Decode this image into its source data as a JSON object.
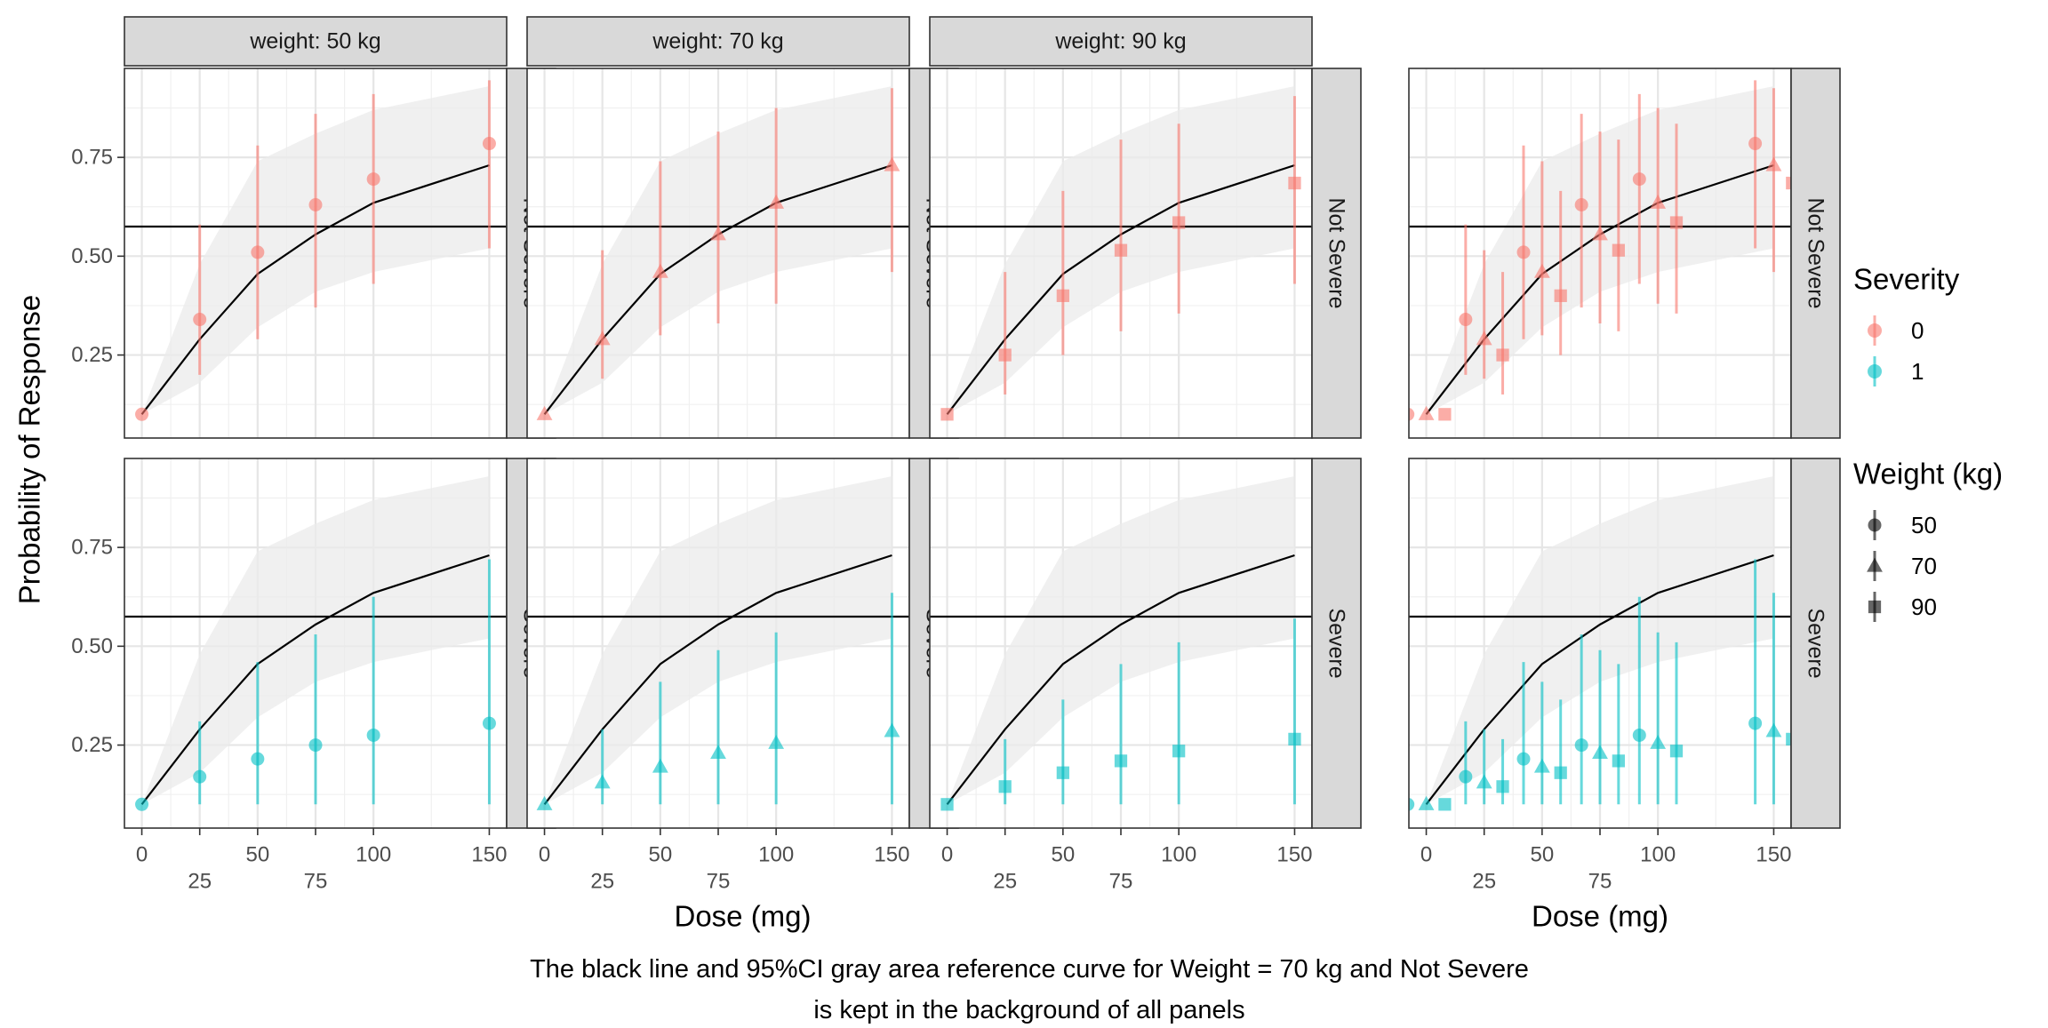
{
  "chart_data": {
    "type": "scatter",
    "ylabel": "Probability of Response",
    "xlabel": "Dose (mg)",
    "caption": [
      "The black line and 95%CI gray area reference curve for Weight = 70 kg and Not Severe",
      "is kept in the background of all panels"
    ],
    "facet_columns": [
      "weight: 50 kg",
      "weight: 70 kg",
      "weight: 90 kg"
    ],
    "facet_rows": [
      "Not Severe",
      "Severe"
    ],
    "x_ticks_top": [
      0,
      50,
      100,
      150
    ],
    "x_ticks_bottom": [
      25,
      75
    ],
    "x_tick_labels_top": [
      "0",
      "50",
      "100",
      "150"
    ],
    "x_tick_labels_bottom": [
      "25",
      "75"
    ],
    "y_ticks": [
      0.25,
      0.5,
      0.75
    ],
    "y_tick_labels": [
      "0.25",
      "0.50",
      "0.75"
    ],
    "xlim": [
      -7.5,
      157.5
    ],
    "ylim": [
      0.04,
      0.975
    ],
    "dodge_width": 8,
    "reference": {
      "dose": [
        0,
        25,
        50,
        75,
        100,
        150
      ],
      "prob": [
        0.1,
        0.29,
        0.455,
        0.555,
        0.635,
        0.73
      ],
      "lower": [
        0.1,
        0.18,
        0.32,
        0.41,
        0.46,
        0.52
      ],
      "upper": [
        0.1,
        0.48,
        0.74,
        0.81,
        0.87,
        0.93
      ],
      "hline": 0.575,
      "line_color": "#000000",
      "ribbon_color": "#ebebeb"
    },
    "series": [
      {
        "severity": "0",
        "weight": "50",
        "x": [
          0,
          25,
          50,
          75,
          100,
          150
        ],
        "y": [
          0.1,
          0.34,
          0.51,
          0.63,
          0.695,
          0.785
        ],
        "lower": [
          0.1,
          0.2,
          0.29,
          0.37,
          0.43,
          0.52
        ],
        "upper": [
          0.1,
          0.58,
          0.78,
          0.86,
          0.91,
          0.945
        ]
      },
      {
        "severity": "0",
        "weight": "70",
        "x": [
          0,
          25,
          50,
          75,
          100,
          150
        ],
        "y": [
          0.1,
          0.29,
          0.46,
          0.555,
          0.635,
          0.73
        ],
        "lower": [
          0.1,
          0.19,
          0.3,
          0.33,
          0.38,
          0.46
        ],
        "upper": [
          0.1,
          0.515,
          0.74,
          0.815,
          0.875,
          0.925
        ]
      },
      {
        "severity": "0",
        "weight": "90",
        "x": [
          0,
          25,
          50,
          75,
          100,
          150
        ],
        "y": [
          0.1,
          0.25,
          0.4,
          0.515,
          0.585,
          0.685
        ],
        "lower": [
          0.1,
          0.15,
          0.25,
          0.31,
          0.355,
          0.43
        ],
        "upper": [
          0.1,
          0.46,
          0.665,
          0.795,
          0.835,
          0.905
        ]
      },
      {
        "severity": "1",
        "weight": "50",
        "x": [
          0,
          25,
          50,
          75,
          100,
          150
        ],
        "y": [
          0.1,
          0.17,
          0.215,
          0.25,
          0.275,
          0.305
        ],
        "lower": [
          0.1,
          0.1,
          0.1,
          0.1,
          0.1,
          0.1
        ],
        "upper": [
          0.1,
          0.31,
          0.46,
          0.53,
          0.625,
          0.72
        ]
      },
      {
        "severity": "1",
        "weight": "70",
        "x": [
          0,
          25,
          50,
          75,
          100,
          150
        ],
        "y": [
          0.1,
          0.155,
          0.195,
          0.23,
          0.255,
          0.285
        ],
        "lower": [
          0.1,
          0.1,
          0.1,
          0.1,
          0.1,
          0.1
        ],
        "upper": [
          0.1,
          0.29,
          0.41,
          0.49,
          0.535,
          0.635
        ]
      },
      {
        "severity": "1",
        "weight": "90",
        "x": [
          0,
          25,
          50,
          75,
          100,
          150
        ],
        "y": [
          0.1,
          0.145,
          0.18,
          0.21,
          0.235,
          0.265
        ],
        "lower": [
          0.1,
          0.1,
          0.1,
          0.1,
          0.1,
          0.1
        ],
        "upper": [
          0.1,
          0.265,
          0.365,
          0.455,
          0.51,
          0.57
        ]
      }
    ],
    "legend_severity": {
      "title": "Severity",
      "items": [
        "0",
        "1"
      ],
      "colors": {
        "0": "#F8766D",
        "1": "#00BFC4"
      }
    },
    "legend_weight": {
      "title": "Weight (kg)",
      "items": [
        "50",
        "70",
        "90"
      ],
      "shapes": {
        "50": "circle",
        "70": "triangle",
        "90": "square"
      }
    },
    "legend_placement": "right",
    "grid": true,
    "point_alpha": 0.6
  }
}
